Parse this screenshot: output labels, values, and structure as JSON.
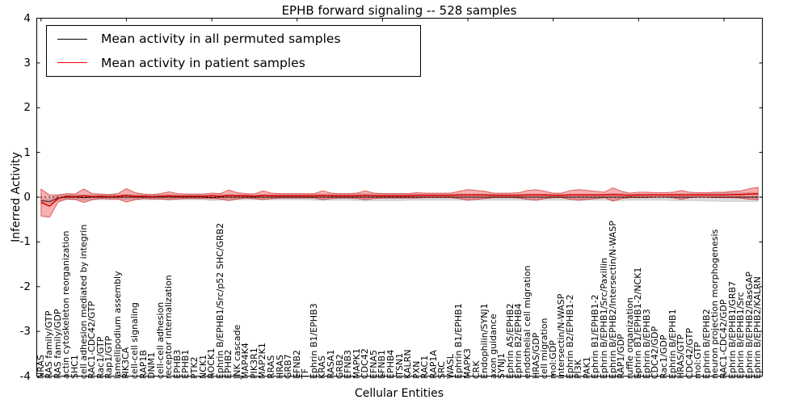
{
  "title": "EPHB forward signaling -- 528 samples",
  "axes": {
    "ylabel": "Inferred Activity",
    "xlabel": "Cellular Entities",
    "ylim": [
      -4,
      4
    ],
    "ytick_labels": [
      "4",
      "3",
      "2",
      "1",
      "0",
      "-1",
      "-2",
      "-3",
      "-4"
    ],
    "ytick_values": [
      4,
      3,
      2,
      1,
      0,
      -1,
      -2,
      -3,
      -4
    ],
    "xtick_major_indices": [
      0,
      10,
      20,
      30,
      40,
      50,
      60,
      70,
      80
    ],
    "grid": false
  },
  "legend": {
    "position": "upper left",
    "items": [
      {
        "label": "Mean activity in all permuted samples",
        "color": "#000000"
      },
      {
        "label": "Mean activity in patient samples",
        "color": "#ff0000"
      }
    ]
  },
  "colors": {
    "permuted_line": "#000000",
    "permuted_band_fill": "rgba(0,0,0,0.14)",
    "permuted_band_edge": "rgba(0,0,0,0.10)",
    "patient_line": "#e00000",
    "patient_band_fill": "rgba(230,30,30,0.35)",
    "patient_band_edge": "rgba(200,0,0,0.55)",
    "zero_line": "#000000"
  },
  "chart_data": {
    "type": "line",
    "title": "EPHB forward signaling -- 528 samples",
    "xlabel": "Cellular Entities",
    "ylabel": "Inferred Activity",
    "ylim": [
      -4,
      4
    ],
    "n_points": 85,
    "categories": [
      "NRAS",
      "RAS family/GTP",
      "RAS family/GDP",
      "actin cytoskeleton reorganization",
      "SHC1",
      "cell adhesion mediated by integrin",
      "RAC1-CDC42/GTP",
      "Rac1/GTP",
      "Rap1/GTP",
      "lamellipodium assembly",
      "PIK3CA",
      "cell-cell signaling",
      "RAP1B",
      "DNM1",
      "cell-cell adhesion",
      "receptor internalization",
      "EPHB3",
      "EPHB1",
      "PTK2",
      "NCK1",
      "ROCK1",
      "Ephrin B/EPHB1/Src/p52 SHC/GRB2",
      "EPHB2",
      "JNK cascade",
      "MAP4K4",
      "PIK3R1",
      "MAP2K1",
      "RRAS",
      "HRAS",
      "GRB7",
      "EFNB2",
      "TF",
      "Ephrin B1/EPHB3",
      "KRAS",
      "RASA1",
      "GRB2",
      "EFNB3",
      "MAPK1",
      "CDC42",
      "EFNA5",
      "EFNB1",
      "EPHB4",
      "ITSN1",
      "KALRN",
      "PXN",
      "RAC1",
      "RAP1A",
      "SRC",
      "WASL",
      "Ephrin B1/EPHB1",
      "MAPK3",
      "CRK",
      "Endophilin/SYNJ1",
      "axon guidance",
      "SYNJ1",
      "Ephrin A5/EPHB2",
      "Ephrin B2/EPHB4",
      "endothelial cell migration",
      "HRAS/GDP",
      "cell migration",
      "mol:GDP",
      "intersectin/N-WASP",
      "Ephrin B2/EPHB1-2",
      "PI3K",
      "PAK1",
      "Ephrin B1/EPHB1-2",
      "Ephrin B/EPHB1/Src/Paxillin",
      "Ephrin B/EPHB2/Intersectin/N-WASP",
      "RAP1/GDP",
      "ruffle organization",
      "Ephrin B1/EPHB1-2/NCK1",
      "Ephrin B/EPHB3",
      "CDC42/GDP",
      "Rac1/GDP",
      "Ephrin B/EPHB1",
      "HRAS/GTP",
      "CDC42/GTP",
      "mol:GTP",
      "Ephrin B/EPHB2",
      "neuron projection morphogenesis",
      "RAC1-CDC42/GDP",
      "Ephrin B/EPHB1/GRB7",
      "Ephrin B/EPHB1/Src",
      "Ephrin B/EPHB2/RasGAP",
      "Ephrin B/EPHB2/KALRN"
    ],
    "series": [
      {
        "name": "Mean activity in all permuted samples",
        "values": [
          -0.08,
          -0.1,
          -0.02,
          0,
          0,
          -0.01,
          0,
          0,
          0,
          0,
          0,
          0,
          0,
          0,
          0,
          0,
          0,
          0,
          0,
          0,
          -0.01,
          0,
          0,
          0,
          0,
          0,
          0,
          0,
          0,
          0,
          0,
          0,
          0,
          0,
          0,
          0,
          0,
          0,
          0,
          0,
          0,
          0,
          0,
          0,
          0,
          0,
          0,
          0,
          0,
          0,
          0,
          0,
          0,
          0,
          0,
          0,
          0,
          0,
          0,
          0,
          0,
          0,
          0,
          0,
          0,
          0,
          0,
          0,
          0,
          0,
          0,
          0,
          0,
          0,
          0,
          0,
          0,
          0,
          0,
          0,
          0,
          0,
          0,
          0,
          0
        ],
        "band_halfwidth": [
          0.05,
          0.05,
          0.06,
          0.06,
          0.06,
          0.06,
          0.06,
          0.06,
          0.06,
          0.06,
          0.06,
          0.06,
          0.06,
          0.06,
          0.06,
          0.06,
          0.06,
          0.06,
          0.06,
          0.06,
          0.07,
          0.07,
          0.06,
          0.06,
          0.06,
          0.06,
          0.06,
          0.06,
          0.06,
          0.06,
          0.06,
          0.06,
          0.07,
          0.07,
          0.07,
          0.07,
          0.07,
          0.08,
          0.08,
          0.08,
          0.08,
          0.08,
          0.08,
          0.07,
          0.07,
          0.07,
          0.07,
          0.07,
          0.07,
          0.07,
          0.07,
          0.07,
          0.07,
          0.07,
          0.07,
          0.07,
          0.07,
          0.07,
          0.07,
          0.07,
          0.07,
          0.07,
          0.07,
          0.07,
          0.07,
          0.07,
          0.07,
          0.08,
          0.08,
          0.07,
          0.07,
          0.07,
          0.07,
          0.07,
          0.08,
          0.08,
          0.08,
          0.08,
          0.09,
          0.09,
          0.1,
          0.1,
          0.1,
          0.1,
          0.1
        ]
      },
      {
        "name": "Mean activity in patient samples",
        "values": [
          -0.12,
          -0.2,
          -0.03,
          0.02,
          0.01,
          0.03,
          0.01,
          0.02,
          0.01,
          0.02,
          0.04,
          0.02,
          0.02,
          0.01,
          0.02,
          0.03,
          0.02,
          0.02,
          0.02,
          0.02,
          0.03,
          0.02,
          0.04,
          0.03,
          0.03,
          0.02,
          0.04,
          0.03,
          0.03,
          0.03,
          0.03,
          0.03,
          0.03,
          0.04,
          0.03,
          0.03,
          0.03,
          0.03,
          0.04,
          0.03,
          0.03,
          0.03,
          0.03,
          0.03,
          0.04,
          0.04,
          0.04,
          0.04,
          0.04,
          0.05,
          0.05,
          0.05,
          0.05,
          0.04,
          0.04,
          0.04,
          0.04,
          0.05,
          0.05,
          0.05,
          0.04,
          0.04,
          0.05,
          0.05,
          0.05,
          0.05,
          0.05,
          0.06,
          0.05,
          0.04,
          0.05,
          0.05,
          0.05,
          0.05,
          0.05,
          0.05,
          0.05,
          0.05,
          0.05,
          0.05,
          0.05,
          0.06,
          0.06,
          0.07,
          0.08
        ],
        "band_halfwidth": [
          0.3,
          0.25,
          0.08,
          0.06,
          0.06,
          0.15,
          0.07,
          0.05,
          0.05,
          0.06,
          0.15,
          0.08,
          0.05,
          0.05,
          0.06,
          0.09,
          0.06,
          0.05,
          0.05,
          0.05,
          0.06,
          0.06,
          0.12,
          0.07,
          0.05,
          0.05,
          0.1,
          0.06,
          0.05,
          0.05,
          0.05,
          0.05,
          0.05,
          0.1,
          0.06,
          0.05,
          0.05,
          0.06,
          0.1,
          0.06,
          0.05,
          0.05,
          0.05,
          0.05,
          0.06,
          0.05,
          0.05,
          0.05,
          0.05,
          0.08,
          0.12,
          0.1,
          0.08,
          0.05,
          0.05,
          0.05,
          0.06,
          0.1,
          0.12,
          0.08,
          0.05,
          0.05,
          0.1,
          0.12,
          0.1,
          0.08,
          0.06,
          0.15,
          0.08,
          0.05,
          0.06,
          0.06,
          0.05,
          0.05,
          0.06,
          0.1,
          0.06,
          0.05,
          0.05,
          0.06,
          0.06,
          0.07,
          0.08,
          0.12,
          0.14
        ]
      }
    ],
    "zero_reference_line": 0
  }
}
